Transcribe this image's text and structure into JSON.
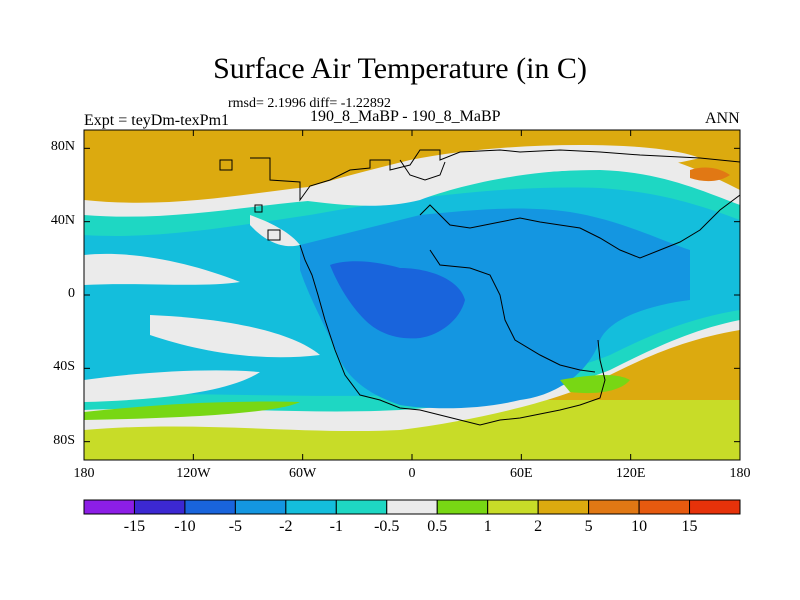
{
  "title": "Surface Air Temperature (in C)",
  "stats": "rmsd= 2.1996 diff= -1.22892",
  "left_label": "Expt = teyDm-texPm1",
  "center_label": "190_8_MaBP - 190_8_MaBP",
  "right_label": "ANN",
  "y_ticks": [
    "80N",
    "40N",
    "0",
    "40S",
    "80S"
  ],
  "x_ticks": [
    "180",
    "120W",
    "60W",
    "0",
    "60E",
    "120E",
    "180"
  ],
  "colorbar": {
    "labels": [
      "-15",
      "-10",
      "-5",
      "-2",
      "-1",
      "-0.5",
      "0.5",
      "1",
      "2",
      "5",
      "10",
      "15"
    ],
    "colors": [
      "#8c1ee6",
      "#3c28d2",
      "#1964dc",
      "#1496e1",
      "#14bedc",
      "#1ed7c3",
      "#ebebeb",
      "#78d714",
      "#c8dc28",
      "#dcaa0f",
      "#e17814",
      "#e65a0f",
      "#e6320a"
    ]
  },
  "map_colors": {
    "ocean_pos": "#dcaa0f",
    "ocean_mid": "#c8dc28",
    "land_warm": "#78d714",
    "neutral": "#ebebeb",
    "cool_light": "#1ed7c3",
    "cool": "#14bedc",
    "cold": "#1496e1",
    "colder": "#1964dc",
    "hot": "#e17814"
  }
}
